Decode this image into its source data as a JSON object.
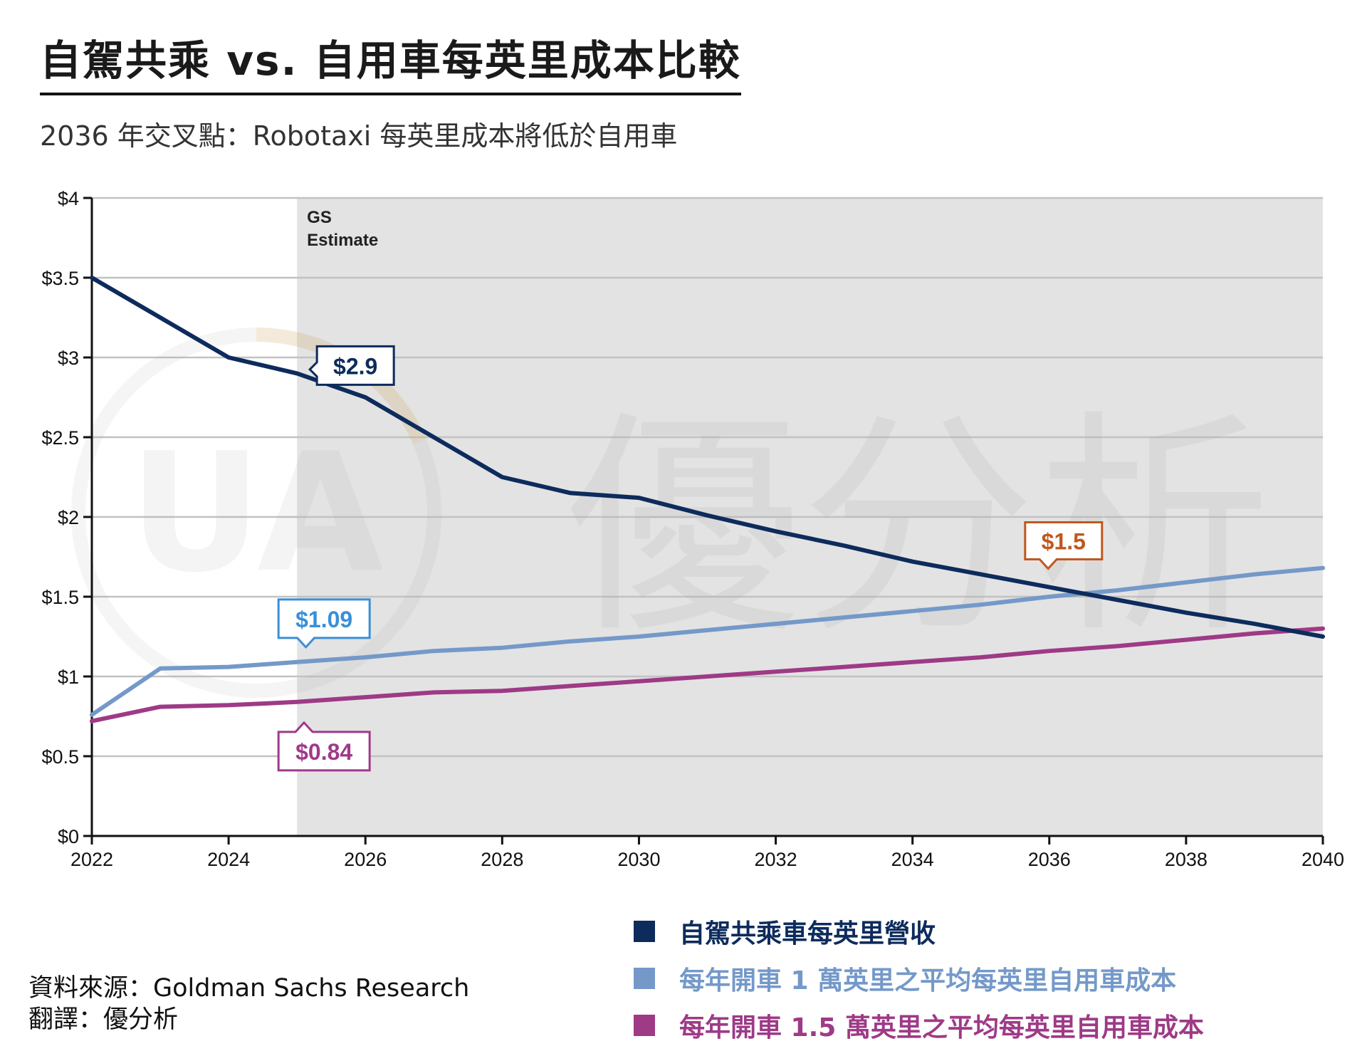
{
  "title": "自駕共乘 vs. 自用車每英里成本比較",
  "subtitle": "2036 年交叉點：Robotaxi 每英里成本將低於自用車",
  "shade_label_line1": "GS",
  "shade_label_line2": "Estimate",
  "source": {
    "line1": "資料來源：Goldman Sachs Research",
    "line2": "翻譯：優分析"
  },
  "watermark": {
    "logo_text": "UA",
    "text": "優分析"
  },
  "colors": {
    "robotaxi": "#0d2b5c",
    "car_10k": "#7499c9",
    "car_15k": "#9e3a86",
    "shade": "#e3e3e3",
    "callout_robotaxi": "#0d2b5c",
    "callout_car_10k": "#3a8fd6",
    "callout_car_15k": "#a0398a",
    "callout_cross": "#c0581f"
  },
  "chart_data": {
    "type": "line",
    "x": [
      2022,
      2023,
      2024,
      2025,
      2026,
      2027,
      2028,
      2029,
      2030,
      2031,
      2032,
      2033,
      2034,
      2035,
      2036,
      2037,
      2038,
      2039,
      2040
    ],
    "xlim": [
      2022,
      2040
    ],
    "ylim": [
      0,
      4
    ],
    "x_ticks": [
      "2022",
      "2024",
      "2026",
      "2028",
      "2030",
      "2032",
      "2034",
      "2036",
      "2038",
      "2040"
    ],
    "y_ticks": [
      "$0",
      "$0.5",
      "$1",
      "$1.5",
      "$2",
      "$2.5",
      "$3",
      "$3.5",
      "$4"
    ],
    "grid": true,
    "shaded_region_from": 2025,
    "series": [
      {
        "name": "自駕共乘車每英里營收",
        "color_key": "robotaxi",
        "values": [
          3.5,
          3.25,
          3.0,
          2.9,
          2.75,
          2.5,
          2.25,
          2.15,
          2.12,
          2.01,
          1.91,
          1.82,
          1.72,
          1.64,
          1.56,
          1.48,
          1.4,
          1.33,
          1.25
        ]
      },
      {
        "name": "每年開車 1 萬英里之平均每英里自用車成本",
        "color_key": "car_10k",
        "values": [
          0.76,
          1.05,
          1.06,
          1.09,
          1.12,
          1.16,
          1.18,
          1.22,
          1.25,
          1.29,
          1.33,
          1.37,
          1.41,
          1.45,
          1.5,
          1.54,
          1.59,
          1.64,
          1.68
        ]
      },
      {
        "name": "每年開車 1.5 萬英里之平均每英里自用車成本",
        "color_key": "car_15k",
        "values": [
          0.72,
          0.81,
          0.82,
          0.84,
          0.87,
          0.9,
          0.91,
          0.94,
          0.97,
          1.0,
          1.03,
          1.06,
          1.09,
          1.12,
          1.16,
          1.19,
          1.23,
          1.27,
          1.3
        ]
      }
    ],
    "annotations": [
      {
        "text": "$2.9",
        "x": 2025,
        "y": 2.9,
        "color_key": "callout_robotaxi"
      },
      {
        "text": "$1.09",
        "x": 2025,
        "y": 1.09,
        "color_key": "callout_car_10k"
      },
      {
        "text": "$0.84",
        "x": 2025,
        "y": 0.84,
        "color_key": "callout_car_15k"
      },
      {
        "text": "$1.5",
        "x": 2036.5,
        "y": 1.52,
        "color_key": "callout_cross"
      }
    ]
  }
}
